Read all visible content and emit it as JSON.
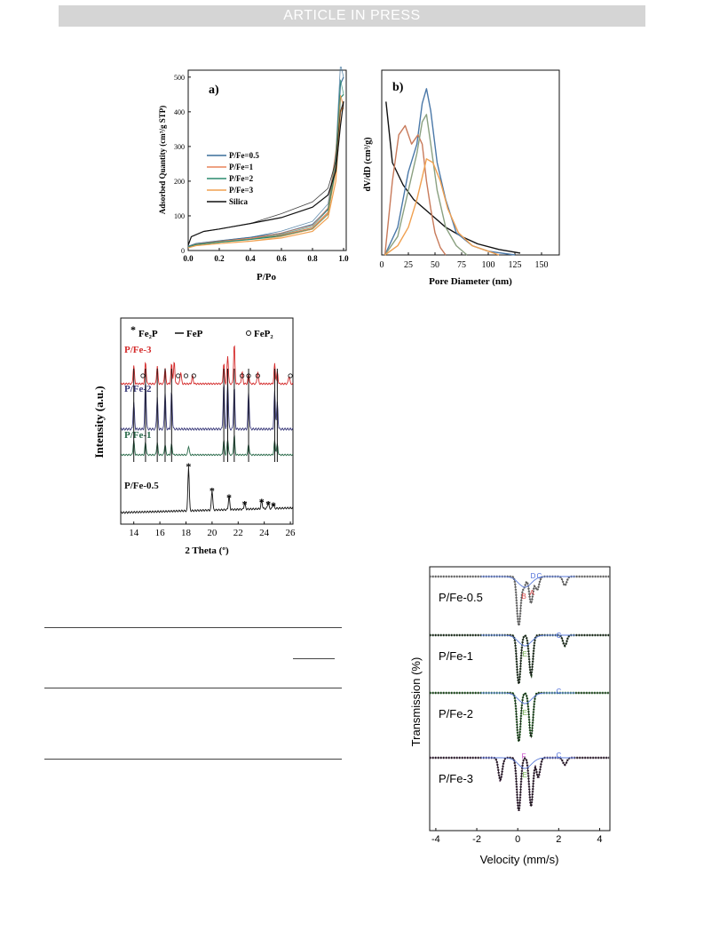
{
  "banner": {
    "text": "ARTICLE IN PRESS"
  },
  "figures": {
    "isotherm": {
      "panel_label": "a)",
      "xlabel": "P/Po",
      "ylabel": "Adsorbed Quantity (cm³/g STP)",
      "xticks": [
        "0.0",
        "0.2",
        "0.4",
        "0.6",
        "0.8",
        "1.0"
      ],
      "yticks": [
        "0",
        "100",
        "200",
        "300",
        "400",
        "500"
      ],
      "legend": [
        "P/Fe=0.5",
        "P/Fe=1",
        "P/Fe=2",
        "P/Fe=3",
        "Silica"
      ]
    },
    "pore": {
      "panel_label": "b)",
      "xlabel": "Pore Diameter (nm)",
      "ylabel": "dV/dD (cm³/g)",
      "xticks": [
        "0",
        "25",
        "50",
        "75",
        "100",
        "125",
        "150"
      ]
    },
    "xrd": {
      "xlabel": "2 Theta (º)",
      "ylabel": "Intensity (a.u.)",
      "xticks": [
        "14",
        "16",
        "18",
        "20",
        "22",
        "24",
        "26"
      ],
      "legend_fe2p": "Fe₂P",
      "legend_fep": "FeP",
      "legend_fep2": "FeP₂",
      "samples": [
        "P/Fe-3",
        "P/Fe-2",
        "P/Fe-1",
        "P/Fe-0.5"
      ]
    },
    "mossbauer": {
      "xlabel": "Velocity (mm/s)",
      "ylabel": "Transmission (%)",
      "xticks": [
        "-4",
        "-2",
        "0",
        "2",
        "4"
      ],
      "samples": [
        "P/Fe-0.5",
        "P/Fe-1",
        "P/Fe-2",
        "P/Fe-3"
      ]
    }
  },
  "chart_data": [
    {
      "type": "line",
      "title": "",
      "xlabel": "P/Po",
      "ylabel": "Adsorbed Quantity (cm3/g STP)",
      "xlim": [
        0,
        1.0
      ],
      "ylim": [
        0,
        520
      ],
      "legend": "middle-left",
      "colors": {
        "P/Fe=0.5": "#3a6f9a",
        "P/Fe=1": "#e8845a",
        "P/Fe=2": "#2a8a6e",
        "P/Fe=3": "#f0a050",
        "Silica": "#111111"
      },
      "series": [
        {
          "name": "P/Fe=0.5",
          "x": [
            0,
            0.05,
            0.2,
            0.4,
            0.6,
            0.8,
            0.9,
            0.95,
            0.98,
            1.0
          ],
          "y": [
            12,
            20,
            28,
            38,
            50,
            75,
            120,
            250,
            480,
            500
          ]
        },
        {
          "name": "P/Fe=1",
          "x": [
            0,
            0.05,
            0.2,
            0.4,
            0.6,
            0.8,
            0.9,
            0.95,
            0.98,
            1.0
          ],
          "y": [
            10,
            18,
            26,
            35,
            45,
            65,
            110,
            260,
            400,
            420
          ]
        },
        {
          "name": "P/Fe=2",
          "x": [
            0,
            0.05,
            0.2,
            0.4,
            0.6,
            0.8,
            0.9,
            0.95,
            0.98,
            1.0
          ],
          "y": [
            10,
            17,
            24,
            32,
            42,
            62,
            105,
            240,
            440,
            450
          ]
        },
        {
          "name": "P/Fe=3",
          "x": [
            0,
            0.05,
            0.2,
            0.4,
            0.6,
            0.8,
            0.9,
            0.95,
            0.98,
            1.0
          ],
          "y": [
            8,
            14,
            20,
            27,
            36,
            55,
            95,
            200,
            400,
            410
          ]
        },
        {
          "name": "Silica",
          "x": [
            0,
            0.02,
            0.1,
            0.2,
            0.4,
            0.6,
            0.8,
            0.9,
            0.95,
            0.98,
            1.0
          ],
          "y": [
            15,
            40,
            55,
            62,
            78,
            95,
            125,
            160,
            230,
            360,
            430
          ]
        }
      ]
    },
    {
      "type": "line",
      "title": "",
      "xlabel": "Pore Diameter (nm)",
      "ylabel": "dV/dD (cm3/g)",
      "xlim": [
        0,
        150
      ],
      "series": [
        {
          "color": "#111111",
          "x": [
            4,
            10,
            20,
            30,
            40,
            50,
            60,
            75,
            90,
            110,
            130
          ],
          "y": [
            0.83,
            0.5,
            0.38,
            0.3,
            0.25,
            0.2,
            0.15,
            0.1,
            0.06,
            0.03,
            0.01
          ]
        },
        {
          "color": "#4a78a8",
          "x": [
            3,
            15,
            25,
            33,
            38,
            42,
            46,
            52,
            60,
            70,
            85,
            100,
            125
          ],
          "y": [
            0,
            0.15,
            0.45,
            0.6,
            0.82,
            0.9,
            0.78,
            0.5,
            0.3,
            0.12,
            0.05,
            0.02,
            0
          ]
        },
        {
          "color": "#c87a5a",
          "x": [
            3,
            10,
            16,
            22,
            28,
            34,
            38,
            42,
            46,
            50,
            55,
            60
          ],
          "y": [
            0,
            0.4,
            0.65,
            0.7,
            0.6,
            0.65,
            0.6,
            0.4,
            0.25,
            0.12,
            0.04,
            0
          ]
        },
        {
          "color": "#8aa080",
          "x": [
            3,
            15,
            25,
            33,
            38,
            42,
            46,
            52,
            60,
            70,
            80
          ],
          "y": [
            0,
            0.1,
            0.35,
            0.55,
            0.72,
            0.76,
            0.6,
            0.35,
            0.15,
            0.05,
            0
          ]
        },
        {
          "color": "#f0a050",
          "x": [
            3,
            15,
            25,
            33,
            38,
            42,
            48,
            55,
            62,
            72,
            85,
            100,
            110
          ],
          "y": [
            0,
            0.05,
            0.15,
            0.3,
            0.42,
            0.52,
            0.5,
            0.4,
            0.25,
            0.12,
            0.05,
            0.02,
            0
          ]
        }
      ]
    },
    {
      "type": "line",
      "title": "",
      "xlabel": "2 Theta (º)",
      "ylabel": "Intensity (a.u.)",
      "xlim": [
        13,
        26.2
      ],
      "offsets": "stacked",
      "fep_lines": [
        14.0,
        14.9,
        15.8,
        16.4,
        16.9,
        20.9,
        21.2,
        21.7,
        22.8,
        24.8,
        25.0
      ],
      "series": [
        {
          "name": "P/Fe-3",
          "color": "#d42a2a",
          "peaks": [
            [
              14.0,
              0.45
            ],
            [
              14.9,
              0.55
            ],
            [
              15.8,
              0.45
            ],
            [
              16.4,
              0.4
            ],
            [
              16.9,
              0.5
            ],
            [
              17.1,
              0.55
            ],
            [
              17.6,
              0.3
            ],
            [
              18.5,
              0.2
            ],
            [
              20.9,
              0.5
            ],
            [
              21.2,
              0.7
            ],
            [
              21.7,
              1.0
            ],
            [
              22.3,
              0.3
            ],
            [
              22.8,
              0.25
            ],
            [
              23.5,
              0.3
            ],
            [
              24.8,
              0.5
            ],
            [
              25.0,
              0.3
            ],
            [
              25.9,
              0.2
            ]
          ]
        },
        {
          "name": "P/Fe-2",
          "color": "#3a3a7a",
          "peaks": [
            [
              14.0,
              0.5
            ],
            [
              14.9,
              0.9
            ],
            [
              15.8,
              0.6
            ],
            [
              16.4,
              0.7
            ],
            [
              16.9,
              0.7
            ],
            [
              20.9,
              0.85
            ],
            [
              21.2,
              0.9
            ],
            [
              21.7,
              0.8
            ],
            [
              22.8,
              0.7
            ],
            [
              24.8,
              0.7
            ],
            [
              25.0,
              0.5
            ]
          ]
        },
        {
          "name": "P/Fe-1",
          "color": "#2a6a4a",
          "peaks": [
            [
              14.0,
              0.4
            ],
            [
              14.9,
              0.35
            ],
            [
              15.8,
              0.35
            ],
            [
              16.4,
              0.3
            ],
            [
              16.9,
              0.3
            ],
            [
              18.2,
              0.25
            ],
            [
              20.9,
              0.4
            ],
            [
              21.2,
              0.45
            ],
            [
              21.7,
              0.55
            ],
            [
              22.8,
              0.3
            ],
            [
              24.8,
              0.4
            ],
            [
              25.0,
              0.3
            ]
          ]
        },
        {
          "name": "P/Fe-0.5",
          "color": "#111111",
          "peaks": [
            [
              18.2,
              1.0
            ],
            [
              20.0,
              0.45
            ],
            [
              21.3,
              0.3
            ],
            [
              22.5,
              0.15
            ],
            [
              23.8,
              0.2
            ],
            [
              24.3,
              0.15
            ],
            [
              24.7,
              0.12
            ]
          ]
        }
      ]
    },
    {
      "type": "line",
      "title": "",
      "xlabel": "Velocity (mm/s)",
      "ylabel": "Transmission (%)",
      "xlim": [
        -4.3,
        4.5
      ],
      "offsets": "stacked",
      "component_labels": [
        "D",
        "C",
        "B",
        "A",
        "C",
        "E",
        "C",
        "E",
        "C",
        "F",
        "E"
      ],
      "series": [
        {
          "name": "P/Fe-0.5",
          "lines_mm_s": [
            0.05,
            0.65,
            0.3,
            0.95,
            2.3
          ]
        },
        {
          "name": "P/Fe-1",
          "lines_mm_s": [
            0.05,
            0.65,
            2.3
          ]
        },
        {
          "name": "P/Fe-2",
          "lines_mm_s": [
            0.05,
            0.65
          ]
        },
        {
          "name": "P/Fe-3",
          "lines_mm_s": [
            -0.85,
            0.05,
            0.65,
            1.0,
            2.3
          ]
        }
      ]
    }
  ]
}
